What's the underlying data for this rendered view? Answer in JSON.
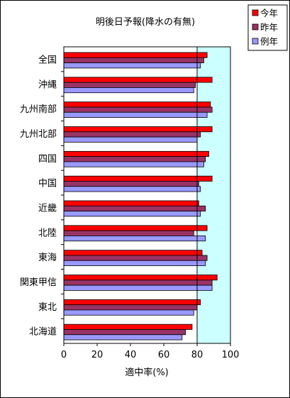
{
  "chart_data": {
    "type": "bar",
    "orientation": "horizontal",
    "title": "明後日予報(降水の有無)",
    "xlabel": "適中率(%)",
    "ylabel": "",
    "xlim": [
      0,
      100
    ],
    "xticks": [
      0,
      20,
      40,
      60,
      80,
      100
    ],
    "grid": false,
    "legend_position": "top-right",
    "categories": [
      "全国",
      "沖縄",
      "九州南部",
      "九州北部",
      "四国",
      "中国",
      "近畿",
      "北陸",
      "東海",
      "関東甲信",
      "東北",
      "北海道"
    ],
    "series": [
      {
        "name": "今年",
        "color": "#ff0000",
        "values": [
          86,
          89,
          88,
          89,
          87,
          89,
          81,
          86,
          83,
          92,
          82,
          77
        ]
      },
      {
        "name": "昨年",
        "color": "#993366",
        "values": [
          84,
          79,
          89,
          82,
          85,
          81,
          85,
          78,
          86,
          89,
          80,
          73
        ]
      },
      {
        "name": "例年",
        "color": "#9999ff",
        "values": [
          82,
          78,
          86,
          80,
          84,
          82,
          82,
          85,
          85,
          89,
          78,
          71
        ]
      }
    ],
    "reference_line": {
      "x": 80,
      "color": "#000000"
    },
    "plot_background": {
      "below_80": "#ffffff",
      "above_80": "#ccffff"
    }
  }
}
